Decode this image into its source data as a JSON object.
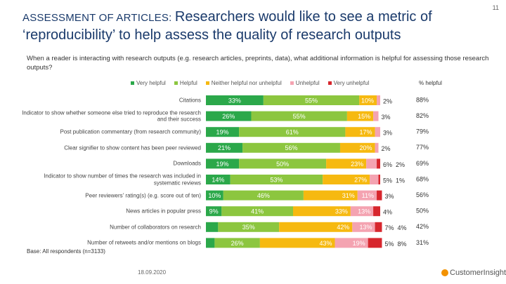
{
  "page_number": "11",
  "footer": {
    "base": "Base: All respondents (n=3133)",
    "date": "18.09.2020",
    "brand": "CustomerInsights"
  },
  "chart_data": {
    "type": "bar",
    "orientation": "horizontal",
    "stacked": true,
    "kicker": "ASSESSMENT OF ARTICLES:",
    "title": "Researchers would like to see a metric of ‘reproducibility’ to help assess the quality of research outputs",
    "subtitle": "When a reader is interacting with research outputs (e.g. research articles, preprints, data), what additional information is helpful for assessing those research outputs?",
    "categories": [
      "Citations",
      "Indicator to show whether someone else tried to reproduce the research and their success",
      "Post publication commentary (from research community)",
      "Clear signifier to show content has been peer reviewed",
      "Downloads",
      "Indicator to show number of times the research was included in systematic reviews",
      "Peer reviewers' rating(s) (e.g. score out of ten)",
      "News articles in popular press",
      "Number of collaborators on research",
      "Number of retweets and/or mentions on blogs"
    ],
    "xlim": [
      0,
      100
    ],
    "series": [
      {
        "name": "Very helpful",
        "color": "#2ba84a",
        "values": [
          33,
          26,
          19,
          21,
          19,
          14,
          10,
          9,
          7,
          5
        ],
        "value_labels": [
          "33%",
          "26%",
          "19%",
          "21%",
          "19%",
          "14%",
          "10%",
          "9%",
          "7%",
          "5%"
        ]
      },
      {
        "name": "Helpful",
        "color": "#8cc63f",
        "values": [
          55,
          55,
          61,
          56,
          50,
          53,
          46,
          41,
          35,
          26
        ],
        "value_labels": [
          "55%",
          "55%",
          "61%",
          "56%",
          "50%",
          "53%",
          "46%",
          "41%",
          "35%",
          "26%"
        ]
      },
      {
        "name": "Neither helpful nor unhelpful",
        "color": "#f6b910",
        "values": [
          10,
          15,
          17,
          20,
          23,
          27,
          31,
          33,
          42,
          43
        ],
        "value_labels": [
          "10%",
          "15%",
          "17%",
          "20%",
          "23%",
          "27%",
          "31%",
          "33%",
          "42%",
          "43%"
        ]
      },
      {
        "name": "Unhelpful",
        "color": "#f4a3b1",
        "values": [
          2,
          3,
          3,
          2,
          6,
          5,
          11,
          13,
          13,
          19
        ],
        "value_labels": [
          "2%",
          "3%",
          "3%",
          "2%",
          "6%",
          "5%",
          "11%",
          "13%",
          "13%",
          "19%"
        ]
      },
      {
        "name": "Very unhelpful",
        "color": "#d7262d",
        "values": [
          null,
          null,
          null,
          null,
          2,
          1,
          3,
          4,
          4,
          8
        ],
        "value_labels": [
          null,
          null,
          null,
          null,
          "2%",
          "1%",
          "3%",
          "4%",
          "4%",
          "8%"
        ]
      }
    ],
    "percent_helpful": {
      "name": "% helpful",
      "values": [
        88,
        82,
        79,
        77,
        69,
        68,
        56,
        50,
        42,
        31
      ],
      "value_labels": [
        "88%",
        "82%",
        "79%",
        "77%",
        "69%",
        "68%",
        "56%",
        "50%",
        "42%",
        "31%"
      ]
    }
  }
}
